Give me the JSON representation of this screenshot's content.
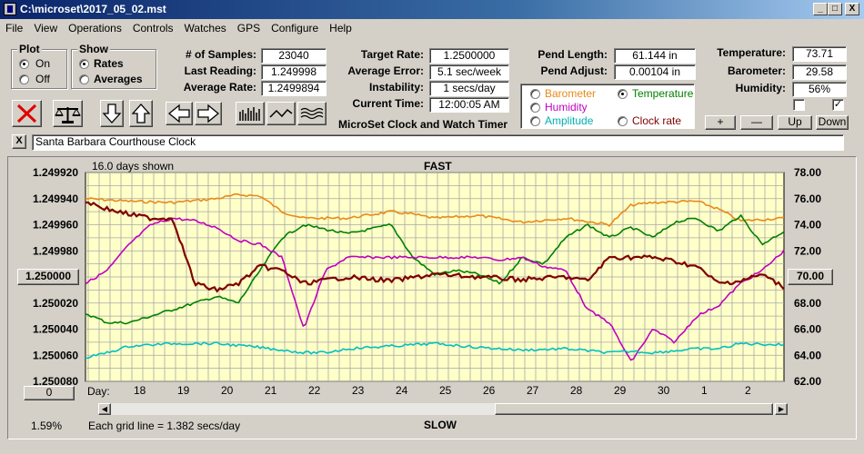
{
  "window": {
    "title": "C:\\microset\\2017_05_02.mst",
    "min": "_",
    "max": "□",
    "close": "X"
  },
  "menu": [
    "File",
    "View",
    "Operations",
    "Controls",
    "Watches",
    "GPS",
    "Configure",
    "Help"
  ],
  "plot_group": {
    "title": "Plot",
    "on": "On",
    "off": "Off",
    "selected": "On"
  },
  "show_group": {
    "title": "Show",
    "rates": "Rates",
    "averages": "Averages",
    "selected": "Rates"
  },
  "stats": {
    "samples_label": "# of Samples:",
    "samples": "23040",
    "last_label": "Last Reading:",
    "last": "1.249998",
    "avg_label": "Average Rate:",
    "avg": "1.2499894"
  },
  "target": {
    "target_label": "Target Rate:",
    "target": "1.2500000",
    "error_label": "Average Error:",
    "error": "5.1 sec/week",
    "instab_label": "Instability:",
    "instab": "1 secs/day",
    "time_label": "Current Time:",
    "time": "12:00:05 AM"
  },
  "app_caption": "MicroSet Clock and Watch Timer",
  "pend": {
    "length_label": "Pend Length:",
    "length": "61.144 in",
    "adjust_label": "Pend Adjust:",
    "adjust": "0.00104 in"
  },
  "sensor_select": {
    "barometer": "Barometer",
    "temperature": "Temperature",
    "humidity": "Humidity",
    "amplitude": "Amplitude",
    "clock_rate": "Clock rate",
    "selected": "Temperature",
    "colors": {
      "barometer": "#e88a18",
      "temperature": "#008000",
      "humidity": "#c000c0",
      "amplitude": "#00c0c0",
      "clock_rate": "#800000"
    }
  },
  "env": {
    "temp_label": "Temperature:",
    "temp": "73.71",
    "baro_label": "Barometer:",
    "baro": "29.58",
    "hum_label": "Humidity:",
    "hum": "56%",
    "check2": "✓"
  },
  "scale_buttons": {
    "plus": "+",
    "minus": "—",
    "up": "Up",
    "down": "Down"
  },
  "watch_name": {
    "close": "X",
    "value": "Santa Barbara Courthouse Clock"
  },
  "plot_header": {
    "days_shown": "16.0 days shown",
    "fast": "FAST",
    "slow": "SLOW",
    "grid_note": "Each grid line = 1.382 secs/day",
    "zoom_pct": "1.59%",
    "day_label": "Day:",
    "left_btn": "0",
    "center_btn": "1.250000",
    "right_btn": "70.00"
  },
  "chart_data": {
    "type": "line",
    "x_label": "Day:",
    "x_ticks": [
      "18",
      "19",
      "20",
      "21",
      "22",
      "23",
      "24",
      "25",
      "26",
      "27",
      "28",
      "29",
      "30",
      "1",
      "2"
    ],
    "x_range_days": [
      0,
      16
    ],
    "y_left_ticks": [
      "1.249920",
      "1.249940",
      "1.249960",
      "1.249980",
      "1.250000",
      "1.250020",
      "1.250040",
      "1.250060",
      "1.250080"
    ],
    "y_left_range": [
      1.24992,
      1.25008
    ],
    "y_right_ticks": [
      "78.00",
      "76.00",
      "74.00",
      "72.00",
      "70.00",
      "68.00",
      "66.00",
      "64.00",
      "62.00"
    ],
    "y_right_range": [
      62,
      78
    ],
    "grid": true,
    "series": [
      {
        "name": "Barometer",
        "color": "#e88a18",
        "axis": "left",
        "x": [
          0,
          1,
          2,
          3,
          3.5,
          4,
          4.5,
          5,
          6,
          7,
          7.5,
          8,
          9,
          10,
          11,
          12,
          12.5,
          13,
          14,
          14.5,
          15,
          16
        ],
        "y": [
          1.24994,
          1.249942,
          1.249943,
          1.24994,
          1.249937,
          1.249938,
          1.24995,
          1.249955,
          1.249955,
          1.24995,
          1.249952,
          1.249955,
          1.249953,
          1.249958,
          1.249955,
          1.24996,
          1.249945,
          1.249943,
          1.249942,
          1.249948,
          1.249957,
          1.249955
        ]
      },
      {
        "name": "Temperature",
        "color": "#008000",
        "axis": "left",
        "x": [
          0,
          0.5,
          1,
          2,
          3,
          3.5,
          4,
          4.5,
          5,
          6,
          7,
          7.5,
          8,
          8.5,
          9,
          9.5,
          10,
          10.5,
          11,
          11.5,
          12,
          12.5,
          13,
          13.5,
          14,
          14.5,
          15,
          15.5,
          16
        ],
        "y": [
          1.250028,
          1.250035,
          1.250035,
          1.250025,
          1.250015,
          1.25002,
          1.249995,
          1.24997,
          1.24996,
          1.249967,
          1.24996,
          1.249985,
          1.249998,
          1.249995,
          1.249998,
          1.250005,
          1.249985,
          1.24999,
          1.24997,
          1.24996,
          1.24997,
          1.249962,
          1.24997,
          1.249958,
          1.249955,
          1.249965,
          1.249953,
          1.249975,
          1.249965
        ]
      },
      {
        "name": "Humidity",
        "color": "#c000c0",
        "axis": "left",
        "x": [
          0,
          0.5,
          1,
          1.5,
          2,
          2.5,
          3,
          3.5,
          4,
          4.5,
          5,
          5.5,
          6,
          7,
          8,
          9,
          9.5,
          10,
          10.5,
          11,
          11.5,
          12,
          12.5,
          13,
          13.5,
          14,
          14.5,
          15,
          15.5,
          16
        ],
        "y": [
          1.250005,
          1.249995,
          1.249975,
          1.24996,
          1.249955,
          1.249957,
          1.249962,
          1.249972,
          1.249975,
          1.249985,
          1.25004,
          1.249995,
          1.249985,
          1.249985,
          1.249985,
          1.249985,
          1.249987,
          1.249985,
          1.249992,
          1.249995,
          1.250025,
          1.250035,
          1.250065,
          1.25004,
          1.25005,
          1.25003,
          1.250022,
          1.250005,
          1.249995,
          1.24998
        ]
      },
      {
        "name": "Amplitude",
        "color": "#00c0c0",
        "axis": "left",
        "x": [
          0,
          0.5,
          1,
          2,
          3,
          4,
          5,
          5.5,
          6,
          7,
          8,
          9,
          10,
          11,
          12,
          12.5,
          13,
          14,
          14.5,
          15,
          16
        ],
        "y": [
          1.250062,
          1.250058,
          1.250053,
          1.250051,
          1.250051,
          1.250054,
          1.250058,
          1.250058,
          1.250055,
          1.250053,
          1.250051,
          1.250054,
          1.250056,
          1.250055,
          1.250058,
          1.250057,
          1.250058,
          1.250055,
          1.250055,
          1.250051,
          1.250052
        ]
      },
      {
        "name": "Clock rate",
        "color": "#800000",
        "axis": "left",
        "x": [
          0,
          0.5,
          1,
          1.5,
          2,
          2.5,
          3,
          3.5,
          4,
          4.5,
          5,
          6,
          7,
          8,
          9,
          10,
          11,
          11.5,
          12,
          12.5,
          13,
          13.5,
          14,
          14.5,
          15,
          15.5,
          16
        ],
        "y": [
          1.249942,
          1.249948,
          1.249952,
          1.249955,
          1.249955,
          1.250005,
          1.25001,
          1.250005,
          1.249992,
          1.249995,
          1.250005,
          1.25,
          1.250003,
          1.249998,
          1.25,
          1.250002,
          1.25,
          1.250003,
          1.249985,
          1.249985,
          1.249985,
          1.249988,
          1.249992,
          1.250005,
          1.250003,
          1.249998,
          1.250008
        ]
      }
    ]
  }
}
